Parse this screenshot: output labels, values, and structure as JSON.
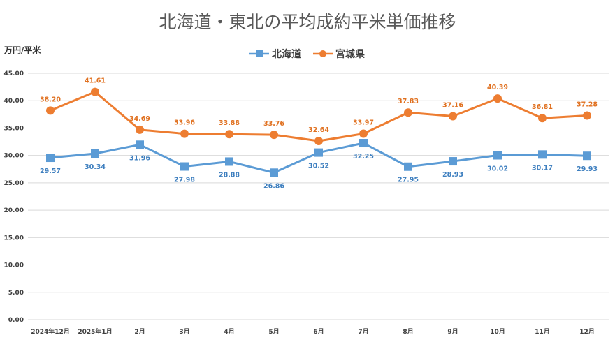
{
  "chart_data": {
    "type": "line",
    "title": "北海道・東北の平均成約平米単価推移",
    "ylabel": "万円/平米",
    "xlabel": "",
    "ylim": [
      0,
      45
    ],
    "ytick_step": 5,
    "grid": true,
    "legend_position": "top-center",
    "categories": [
      "2024年12月",
      "2025年1月",
      "2月",
      "3月",
      "4月",
      "5月",
      "6月",
      "7月",
      "8月",
      "9月",
      "10月",
      "11月",
      "12月"
    ],
    "series": [
      {
        "name": "北海道",
        "color": "#5b9bd5",
        "label_color": "#3e7fbf",
        "marker": "square",
        "label_position": "below",
        "values": [
          29.57,
          30.34,
          31.96,
          27.98,
          28.88,
          26.86,
          30.52,
          32.25,
          27.95,
          28.93,
          30.02,
          30.17,
          29.93
        ]
      },
      {
        "name": "宮城県",
        "color": "#ed7d31",
        "label_color": "#e0701f",
        "marker": "circle",
        "label_position": "above",
        "values": [
          38.2,
          41.61,
          34.69,
          33.96,
          33.88,
          33.76,
          32.64,
          33.97,
          37.83,
          37.16,
          40.39,
          36.81,
          37.28
        ]
      }
    ]
  }
}
